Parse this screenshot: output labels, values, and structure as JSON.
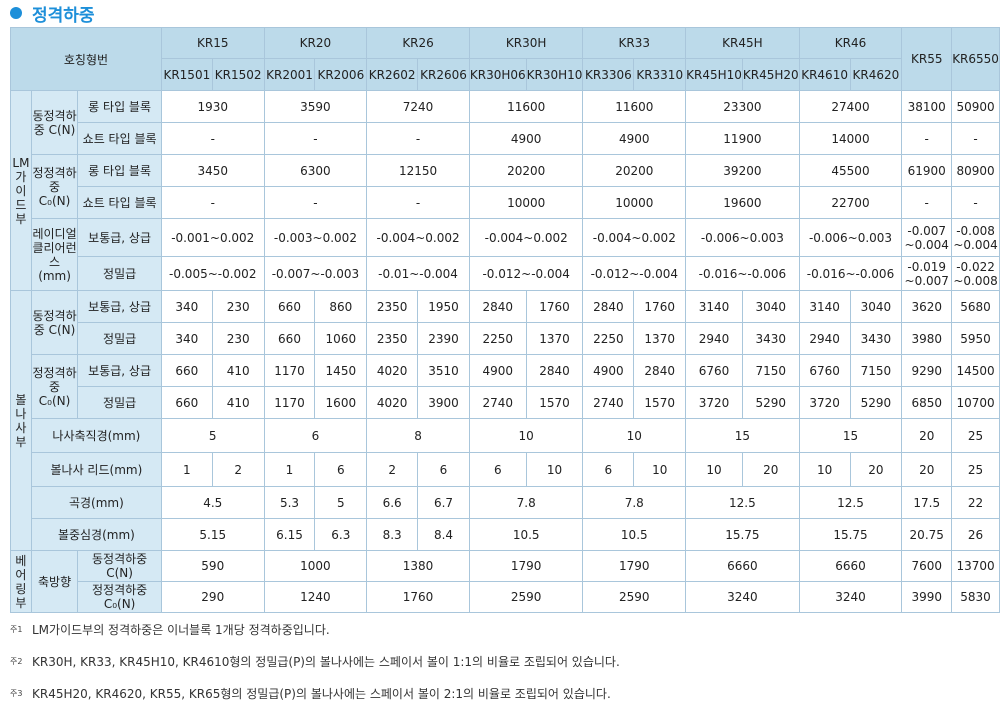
{
  "title": "정격하중",
  "accent_color": "#1d8fd9",
  "header": {
    "model_label": "호칭형번",
    "groups": [
      "KR15",
      "KR20",
      "KR26",
      "KR30H",
      "KR33",
      "KR45H",
      "KR46",
      "KR55",
      "KR6550"
    ],
    "subs": [
      "KR1501",
      "KR1502",
      "KR2001",
      "KR2006",
      "KR2602",
      "KR2606",
      "KR30H06",
      "KR30H10",
      "KR3306",
      "KR3310",
      "KR45H10",
      "KR45H20",
      "KR4610",
      "KR4620"
    ]
  },
  "sections": {
    "lm": "LM가이드부",
    "ball_screw": "볼나사부",
    "bearing": "베어링부"
  },
  "labels": {
    "dyn_load": "동정격하중 C(N)",
    "stat_load": "정정격하중 C₀(N)",
    "long_block": "롱 타입 블록",
    "short_block": "쇼트 타입 블록",
    "radial_clearance": "레이디얼클리어런스 (mm)",
    "normal_upper": "보통급, 상급",
    "precision": "정밀급",
    "screw_dia": "나사축직경(mm)",
    "lead": "볼나사 리드(mm)",
    "curvature": "곡경(mm)",
    "pcd": "볼중심경(mm)",
    "axial": "축방향",
    "axial_dyn": "동정격하중 C(N)",
    "axial_stat": "정정격하중 C₀(N)"
  },
  "lm": {
    "dyn_long": [
      "1930",
      "3590",
      "7240",
      "11600",
      "11600",
      "23300",
      "27400",
      "38100",
      "50900"
    ],
    "dyn_short": [
      "-",
      "-",
      "-",
      "4900",
      "4900",
      "11900",
      "14000",
      "-",
      "-"
    ],
    "stat_long": [
      "3450",
      "6300",
      "12150",
      "20200",
      "20200",
      "39200",
      "45500",
      "61900",
      "80900"
    ],
    "stat_short": [
      "-",
      "-",
      "-",
      "10000",
      "10000",
      "19600",
      "22700",
      "-",
      "-"
    ],
    "clear_normal": [
      "-0.001~0.002",
      "-0.003~0.002",
      "-0.004~0.002",
      "-0.004~0.002",
      "-0.004~0.002",
      "-0.006~0.003",
      "-0.006~0.003",
      "-0.007 ~0.004",
      "-0.008 ~0.004"
    ],
    "clear_precision": [
      "-0.005~-0.002",
      "-0.007~-0.003",
      "-0.01~-0.004",
      "-0.012~-0.004",
      "-0.012~-0.004",
      "-0.016~-0.006",
      "-0.016~-0.006",
      "-0.019 ~0.007",
      "-0.022 ~0.008"
    ]
  },
  "bs": {
    "dyn_normal": [
      "340",
      "230",
      "660",
      "860",
      "2350",
      "1950",
      "2840",
      "1760",
      "2840",
      "1760",
      "3140",
      "3040",
      "3140",
      "3040",
      "3620",
      "5680"
    ],
    "dyn_precision": [
      "340",
      "230",
      "660",
      "1060",
      "2350",
      "2390",
      "2250",
      "1370",
      "2250",
      "1370",
      "2940",
      "3430",
      "2940",
      "3430",
      "3980",
      "5950"
    ],
    "stat_normal": [
      "660",
      "410",
      "1170",
      "1450",
      "4020",
      "3510",
      "4900",
      "2840",
      "4900",
      "2840",
      "6760",
      "7150",
      "6760",
      "7150",
      "9290",
      "14500"
    ],
    "stat_precision": [
      "660",
      "410",
      "1170",
      "1600",
      "4020",
      "3900",
      "2740",
      "1570",
      "2740",
      "1570",
      "3720",
      "5290",
      "3720",
      "5290",
      "6850",
      "10700"
    ],
    "screw_dia": [
      "5",
      "6",
      "8",
      "10",
      "10",
      "15",
      "15",
      "20",
      "25"
    ],
    "lead": [
      "1",
      "2",
      "1",
      "6",
      "2",
      "6",
      "6",
      "10",
      "6",
      "10",
      "10",
      "20",
      "10",
      "20",
      "20",
      "25"
    ],
    "curvature": [
      "4.5",
      "5.3",
      "5",
      "6.6",
      "6.7",
      "7.8",
      "7.8",
      "12.5",
      "12.5",
      "17.5",
      "22"
    ],
    "pcd": [
      "5.15",
      "6.15",
      "6.3",
      "8.3",
      "8.4",
      "10.5",
      "10.5",
      "15.75",
      "15.75",
      "20.75",
      "26"
    ]
  },
  "bearing": {
    "dyn": [
      "590",
      "1000",
      "1380",
      "1790",
      "1790",
      "6660",
      "6660",
      "7600",
      "13700"
    ],
    "stat": [
      "290",
      "1240",
      "1760",
      "2590",
      "2590",
      "3240",
      "3240",
      "3990",
      "5830"
    ]
  },
  "notes": [
    {
      "mark": "주1",
      "text": "LM가이드부의 정격하중은 이너블록 1개당 정격하중입니다."
    },
    {
      "mark": "주2",
      "text": "KR30H, KR33, KR45H10, KR4610형의 정밀급(P)의 볼나사에는 스페이서 볼이 1:1의 비율로 조립되어 있습니다."
    },
    {
      "mark": "주3",
      "text": "KR45H20, KR4620, KR55, KR65형의 정밀급(P)의 볼나사에는 스페이서 볼이 2:1의 비율로 조립되어 있습니다."
    }
  ]
}
